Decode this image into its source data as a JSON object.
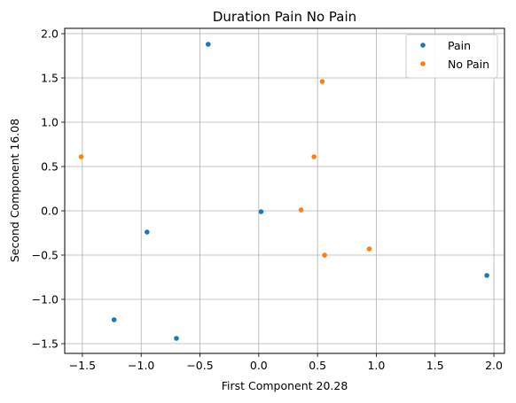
{
  "chart_data": {
    "type": "scatter",
    "title": "Duration Pain No Pain",
    "xlabel": "First Component 20.28",
    "ylabel": "Second Component 16.08",
    "xlim": [
      -1.65,
      2.09
    ],
    "ylim": [
      -1.61,
      2.06
    ],
    "xticks": [
      -1.5,
      -1.0,
      -0.5,
      0.0,
      0.5,
      1.0,
      1.5,
      2.0
    ],
    "xtick_labels": [
      "−1.5",
      "−1.0",
      "−0.5",
      "0.0",
      "0.5",
      "1.0",
      "1.5",
      "2.0"
    ],
    "yticks": [
      -1.5,
      -1.0,
      -0.5,
      0.0,
      0.5,
      1.0,
      1.5,
      2.0
    ],
    "ytick_labels": [
      "−1.5",
      "−1.0",
      "−0.5",
      "0.0",
      "0.5",
      "1.0",
      "1.5",
      "2.0"
    ],
    "grid": true,
    "legend_position": "top-right",
    "series": [
      {
        "name": "Pain",
        "color": "#1f77b4",
        "points": [
          {
            "x": -0.43,
            "y": 1.88
          },
          {
            "x": 0.02,
            "y": -0.01
          },
          {
            "x": -0.95,
            "y": -0.24
          },
          {
            "x": -1.23,
            "y": -1.23
          },
          {
            "x": -0.7,
            "y": -1.44
          },
          {
            "x": 1.94,
            "y": -0.73
          }
        ]
      },
      {
        "name": "No Pain",
        "color": "#ff7f0e",
        "points": [
          {
            "x": 0.54,
            "y": 1.46
          },
          {
            "x": 0.47,
            "y": 0.61
          },
          {
            "x": -1.51,
            "y": 0.61
          },
          {
            "x": 0.36,
            "y": 0.01
          },
          {
            "x": 0.56,
            "y": -0.5
          },
          {
            "x": 0.94,
            "y": -0.43
          }
        ]
      }
    ]
  }
}
